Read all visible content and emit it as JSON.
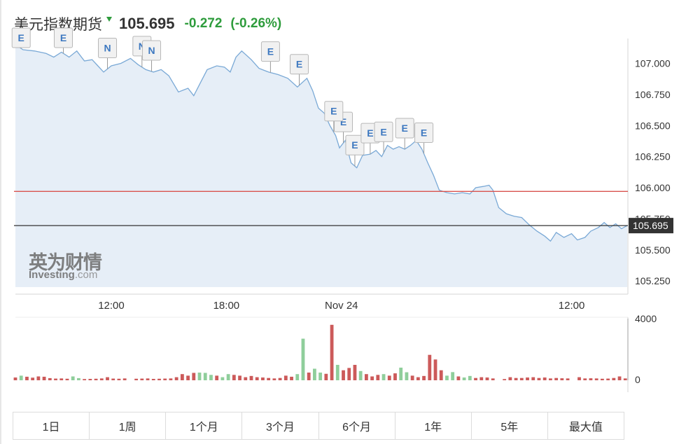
{
  "header": {
    "title": "美元指数期货",
    "price": "105.695",
    "change": "-0.272",
    "change_pct": "(-0.26%)",
    "direction_icon": "down-arrow-icon"
  },
  "colors": {
    "line": "#7aa9d6",
    "area": "#e6eef7",
    "up": "#8fce9b",
    "down": "#cc5a5a",
    "gain": "#2e9c3c",
    "ref_red": "#d9534f",
    "current_line": "#333333"
  },
  "watermark": {
    "cn": "英为财情",
    "en_main": "Investing",
    "en_dom": ".com"
  },
  "chart_data": {
    "type": "line",
    "price_axis": {
      "ticks": [
        "107.000",
        "106.750",
        "106.500",
        "106.250",
        "106.000",
        "105.750",
        "105.500",
        "105.250"
      ],
      "range": [
        105.2,
        107.2
      ]
    },
    "time_axis": {
      "labels": [
        "12:00",
        "18:00",
        "Nov 24",
        "12:00"
      ],
      "positions": [
        6.0,
        12.0,
        18.0,
        30.0
      ],
      "range": [
        1.0,
        32.9
      ]
    },
    "current_price": 105.695,
    "current_label": "105.695",
    "reference_price": 105.97,
    "price": [
      [
        1.0,
        107.15
      ],
      [
        1.4,
        107.11
      ],
      [
        2.0,
        107.1
      ],
      [
        2.6,
        107.08
      ],
      [
        3.0,
        107.05
      ],
      [
        3.4,
        107.09
      ],
      [
        3.8,
        107.05
      ],
      [
        4.2,
        107.1
      ],
      [
        4.6,
        107.02
      ],
      [
        5.0,
        107.03
      ],
      [
        5.3,
        106.98
      ],
      [
        5.6,
        106.93
      ],
      [
        6.0,
        106.98
      ],
      [
        6.5,
        107.0
      ],
      [
        7.0,
        107.04
      ],
      [
        7.4,
        106.99
      ],
      [
        7.8,
        106.95
      ],
      [
        8.2,
        106.93
      ],
      [
        8.6,
        106.95
      ],
      [
        9.0,
        106.9
      ],
      [
        9.5,
        106.77
      ],
      [
        10.0,
        106.8
      ],
      [
        10.3,
        106.74
      ],
      [
        10.6,
        106.83
      ],
      [
        11.0,
        106.95
      ],
      [
        11.5,
        106.98
      ],
      [
        11.9,
        106.97
      ],
      [
        12.2,
        106.93
      ],
      [
        12.5,
        107.05
      ],
      [
        12.8,
        107.1
      ],
      [
        13.3,
        107.03
      ],
      [
        13.7,
        106.96
      ],
      [
        14.2,
        106.93
      ],
      [
        14.7,
        106.91
      ],
      [
        15.2,
        106.88
      ],
      [
        15.7,
        106.81
      ],
      [
        16.2,
        106.88
      ],
      [
        16.5,
        106.78
      ],
      [
        16.8,
        106.64
      ],
      [
        17.1,
        106.6
      ],
      [
        17.4,
        106.5
      ],
      [
        17.7,
        106.42
      ],
      [
        17.9,
        106.32
      ],
      [
        18.2,
        106.38
      ],
      [
        18.5,
        106.2
      ],
      [
        18.8,
        106.16
      ],
      [
        19.1,
        106.26
      ],
      [
        19.5,
        106.27
      ],
      [
        19.8,
        106.3
      ],
      [
        20.1,
        106.25
      ],
      [
        20.4,
        106.34
      ],
      [
        20.7,
        106.31
      ],
      [
        21.0,
        106.33
      ],
      [
        21.3,
        106.31
      ],
      [
        21.6,
        106.34
      ],
      [
        21.9,
        106.38
      ],
      [
        22.2,
        106.31
      ],
      [
        22.5,
        106.2
      ],
      [
        22.8,
        106.1
      ],
      [
        23.1,
        105.98
      ],
      [
        23.5,
        105.96
      ],
      [
        23.9,
        105.95
      ],
      [
        24.3,
        105.96
      ],
      [
        24.7,
        105.95
      ],
      [
        25.0,
        106.0
      ],
      [
        25.4,
        106.01
      ],
      [
        25.7,
        106.02
      ],
      [
        25.9,
        105.98
      ],
      [
        26.2,
        105.84
      ],
      [
        26.6,
        105.79
      ],
      [
        27.0,
        105.77
      ],
      [
        27.4,
        105.76
      ],
      [
        27.8,
        105.7
      ],
      [
        28.2,
        105.65
      ],
      [
        28.6,
        105.61
      ],
      [
        28.9,
        105.57
      ],
      [
        29.2,
        105.64
      ],
      [
        29.6,
        105.6
      ],
      [
        30.0,
        105.63
      ],
      [
        30.3,
        105.58
      ],
      [
        30.7,
        105.6
      ],
      [
        31.0,
        105.65
      ],
      [
        31.4,
        105.68
      ],
      [
        31.7,
        105.72
      ],
      [
        32.0,
        105.68
      ],
      [
        32.3,
        105.71
      ],
      [
        32.6,
        105.67
      ],
      [
        32.9,
        105.695
      ]
    ],
    "events": [
      {
        "label": "E",
        "t": 1.3
      },
      {
        "label": "E",
        "t": 3.5
      },
      {
        "label": "N",
        "t": 5.8
      },
      {
        "label": "N",
        "t": 7.6
      },
      {
        "label": "N",
        "t": 8.1
      },
      {
        "label": "E",
        "t": 14.3
      },
      {
        "label": "E",
        "t": 15.8
      },
      {
        "label": "E",
        "t": 18.1
      },
      {
        "label": "E",
        "t": 17.6
      },
      {
        "label": "E",
        "t": 18.7
      },
      {
        "label": "E",
        "t": 19.5
      },
      {
        "label": "E",
        "t": 20.2
      },
      {
        "label": "E",
        "t": 21.3
      },
      {
        "label": "E",
        "t": 22.3
      }
    ],
    "volume_axis": {
      "ticks": [
        "4000",
        "0"
      ],
      "range": [
        0,
        4000
      ]
    },
    "volume": [
      {
        "t": 1.0,
        "v": 180,
        "up": false
      },
      {
        "t": 1.3,
        "v": 300,
        "up": true
      },
      {
        "t": 1.6,
        "v": 230,
        "up": false
      },
      {
        "t": 1.9,
        "v": 170,
        "up": false
      },
      {
        "t": 2.2,
        "v": 250,
        "up": false
      },
      {
        "t": 2.5,
        "v": 230,
        "up": false
      },
      {
        "t": 2.8,
        "v": 140,
        "up": false
      },
      {
        "t": 3.1,
        "v": 110,
        "up": false
      },
      {
        "t": 3.4,
        "v": 120,
        "up": false
      },
      {
        "t": 3.7,
        "v": 100,
        "up": false
      },
      {
        "t": 4.0,
        "v": 250,
        "up": true
      },
      {
        "t": 4.3,
        "v": 140,
        "up": true
      },
      {
        "t": 4.6,
        "v": 80,
        "up": false
      },
      {
        "t": 4.9,
        "v": 90,
        "up": false
      },
      {
        "t": 5.2,
        "v": 100,
        "up": false
      },
      {
        "t": 5.5,
        "v": 120,
        "up": false
      },
      {
        "t": 5.8,
        "v": 200,
        "up": false
      },
      {
        "t": 6.1,
        "v": 110,
        "up": false
      },
      {
        "t": 6.4,
        "v": 100,
        "up": false
      },
      {
        "t": 6.7,
        "v": 120,
        "up": false
      },
      {
        "t": 7.3,
        "v": 100,
        "up": false
      },
      {
        "t": 7.6,
        "v": 110,
        "up": false
      },
      {
        "t": 7.9,
        "v": 120,
        "up": false
      },
      {
        "t": 8.2,
        "v": 90,
        "up": false
      },
      {
        "t": 8.5,
        "v": 100,
        "up": false
      },
      {
        "t": 8.8,
        "v": 110,
        "up": false
      },
      {
        "t": 9.1,
        "v": 120,
        "up": false
      },
      {
        "t": 9.4,
        "v": 200,
        "up": false
      },
      {
        "t": 9.7,
        "v": 400,
        "up": false
      },
      {
        "t": 10.0,
        "v": 300,
        "up": false
      },
      {
        "t": 10.3,
        "v": 480,
        "up": false
      },
      {
        "t": 10.6,
        "v": 500,
        "up": true
      },
      {
        "t": 10.9,
        "v": 480,
        "up": true
      },
      {
        "t": 11.2,
        "v": 350,
        "up": true
      },
      {
        "t": 11.5,
        "v": 300,
        "up": false
      },
      {
        "t": 11.8,
        "v": 200,
        "up": true
      },
      {
        "t": 12.1,
        "v": 400,
        "up": true
      },
      {
        "t": 12.4,
        "v": 350,
        "up": false
      },
      {
        "t": 12.7,
        "v": 300,
        "up": false
      },
      {
        "t": 13.0,
        "v": 200,
        "up": false
      },
      {
        "t": 13.3,
        "v": 280,
        "up": false
      },
      {
        "t": 13.6,
        "v": 200,
        "up": false
      },
      {
        "t": 13.9,
        "v": 180,
        "up": false
      },
      {
        "t": 14.2,
        "v": 150,
        "up": false
      },
      {
        "t": 14.5,
        "v": 120,
        "up": false
      },
      {
        "t": 14.8,
        "v": 150,
        "up": false
      },
      {
        "t": 15.1,
        "v": 300,
        "up": false
      },
      {
        "t": 15.4,
        "v": 230,
        "up": false
      },
      {
        "t": 15.7,
        "v": 400,
        "up": true
      },
      {
        "t": 16.0,
        "v": 2700,
        "up": true
      },
      {
        "t": 16.3,
        "v": 500,
        "up": false
      },
      {
        "t": 16.6,
        "v": 750,
        "up": true
      },
      {
        "t": 16.9,
        "v": 500,
        "up": true
      },
      {
        "t": 17.2,
        "v": 420,
        "up": false
      },
      {
        "t": 17.5,
        "v": 3600,
        "up": false
      },
      {
        "t": 17.8,
        "v": 1000,
        "up": true
      },
      {
        "t": 18.1,
        "v": 650,
        "up": false
      },
      {
        "t": 18.4,
        "v": 800,
        "up": false
      },
      {
        "t": 18.7,
        "v": 1000,
        "up": false
      },
      {
        "t": 19.0,
        "v": 600,
        "up": true
      },
      {
        "t": 19.3,
        "v": 400,
        "up": false
      },
      {
        "t": 19.6,
        "v": 250,
        "up": false
      },
      {
        "t": 19.9,
        "v": 350,
        "up": false
      },
      {
        "t": 20.2,
        "v": 400,
        "up": true
      },
      {
        "t": 20.5,
        "v": 300,
        "up": false
      },
      {
        "t": 20.8,
        "v": 450,
        "up": false
      },
      {
        "t": 21.1,
        "v": 820,
        "up": true
      },
      {
        "t": 21.4,
        "v": 520,
        "up": true
      },
      {
        "t": 21.7,
        "v": 300,
        "up": false
      },
      {
        "t": 22.0,
        "v": 200,
        "up": false
      },
      {
        "t": 22.3,
        "v": 280,
        "up": false
      },
      {
        "t": 22.6,
        "v": 1650,
        "up": false
      },
      {
        "t": 22.9,
        "v": 1350,
        "up": false
      },
      {
        "t": 23.2,
        "v": 650,
        "up": false
      },
      {
        "t": 23.5,
        "v": 300,
        "up": true
      },
      {
        "t": 23.8,
        "v": 530,
        "up": true
      },
      {
        "t": 24.1,
        "v": 250,
        "up": false
      },
      {
        "t": 24.4,
        "v": 180,
        "up": true
      },
      {
        "t": 24.7,
        "v": 280,
        "up": true
      },
      {
        "t": 25.0,
        "v": 150,
        "up": false
      },
      {
        "t": 25.3,
        "v": 200,
        "up": false
      },
      {
        "t": 25.6,
        "v": 180,
        "up": false
      },
      {
        "t": 25.9,
        "v": 120,
        "up": false
      },
      {
        "t": 26.5,
        "v": 80,
        "up": false
      },
      {
        "t": 26.8,
        "v": 200,
        "up": false
      },
      {
        "t": 27.1,
        "v": 150,
        "up": false
      },
      {
        "t": 27.4,
        "v": 150,
        "up": false
      },
      {
        "t": 27.7,
        "v": 180,
        "up": false
      },
      {
        "t": 28.0,
        "v": 200,
        "up": false
      },
      {
        "t": 28.3,
        "v": 150,
        "up": false
      },
      {
        "t": 28.6,
        "v": 180,
        "up": false
      },
      {
        "t": 28.9,
        "v": 120,
        "up": false
      },
      {
        "t": 29.2,
        "v": 150,
        "up": false
      },
      {
        "t": 29.5,
        "v": 130,
        "up": false
      },
      {
        "t": 29.8,
        "v": 120,
        "up": false
      },
      {
        "t": 30.4,
        "v": 200,
        "up": false
      },
      {
        "t": 30.7,
        "v": 120,
        "up": false
      },
      {
        "t": 31.0,
        "v": 130,
        "up": false
      },
      {
        "t": 31.3,
        "v": 120,
        "up": false
      },
      {
        "t": 31.6,
        "v": 100,
        "up": false
      },
      {
        "t": 31.9,
        "v": 110,
        "up": false
      },
      {
        "t": 32.2,
        "v": 150,
        "up": false
      },
      {
        "t": 32.5,
        "v": 250,
        "up": false
      },
      {
        "t": 32.8,
        "v": 120,
        "up": false
      }
    ]
  },
  "tabs": [
    "1日",
    "1周",
    "1个月",
    "3个月",
    "6个月",
    "1年",
    "5年",
    "最大值"
  ]
}
